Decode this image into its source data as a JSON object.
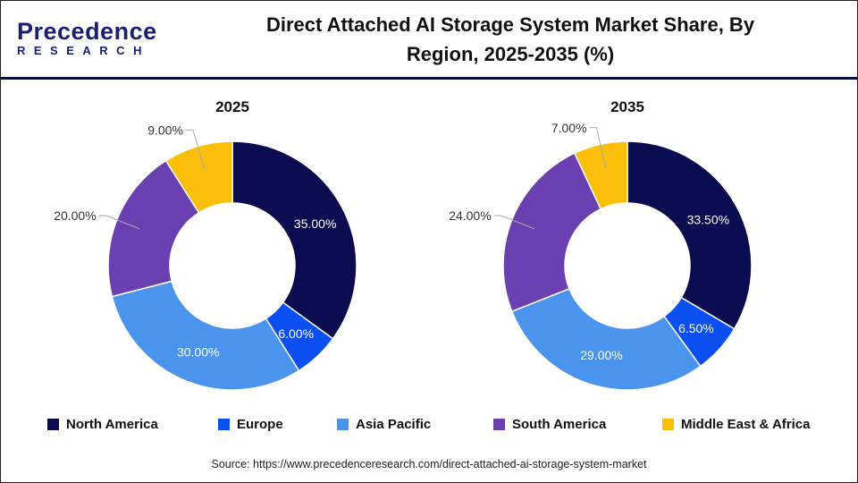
{
  "header": {
    "logo_text": "Precedence",
    "logo_sub": "RESEARCH",
    "title_line1": "Direct Attached AI Storage System Market Share, By",
    "title_line2": "Region, 2025-2035 (%)"
  },
  "chart_data": [
    {
      "type": "donut",
      "title": "2025",
      "categories": [
        "North America",
        "Europe",
        "Asia Pacific",
        "South America",
        "Middle East & Africa"
      ],
      "values": [
        35.0,
        6.0,
        30.0,
        20.0,
        9.0
      ],
      "labels": [
        "35.00%",
        "6.00%",
        "30.00%",
        "20.00%",
        "9.00%"
      ]
    },
    {
      "type": "donut",
      "title": "2035",
      "categories": [
        "North America",
        "Europe",
        "Asia Pacific",
        "South America",
        "Middle East & Africa"
      ],
      "values": [
        33.5,
        6.5,
        29.0,
        24.0,
        7.0
      ],
      "labels": [
        "33.50%",
        "6.50%",
        "29.00%",
        "24.00%",
        "7.00%"
      ]
    }
  ],
  "legend": [
    {
      "label": "North America",
      "color": "#0b0b4f"
    },
    {
      "label": "Europe",
      "color": "#0b4ff0"
    },
    {
      "label": "Asia Pacific",
      "color": "#4a94ee"
    },
    {
      "label": "South America",
      "color": "#6a3fb0"
    },
    {
      "label": "Middle East & Africa",
      "color": "#fbbf0a"
    }
  ],
  "source": "Source: https://www.precedenceresearch.com/direct-attached-ai-storage-system-market"
}
